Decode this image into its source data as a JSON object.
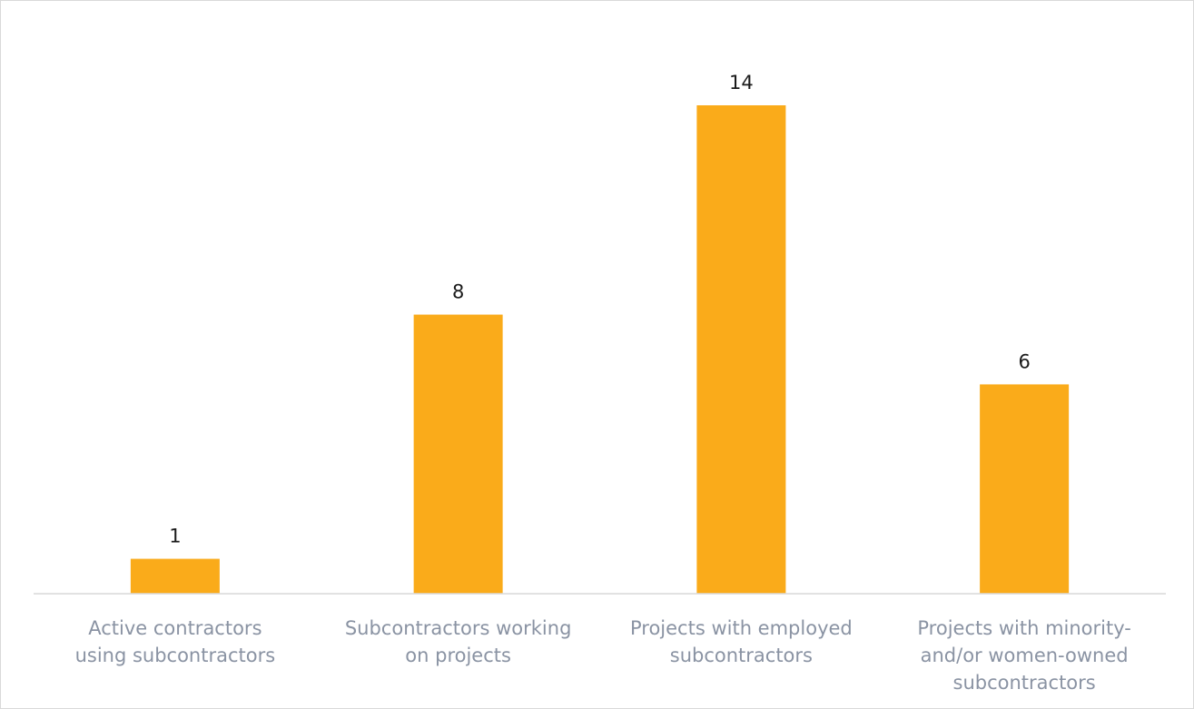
{
  "chart_data": {
    "type": "bar",
    "title": "",
    "xlabel": "",
    "ylabel": "",
    "categories": [
      [
        "Active contractors",
        "using subcontractors"
      ],
      [
        "Subcontractors working",
        "on projects"
      ],
      [
        "Projects with employed",
        "subcontractors"
      ],
      [
        "Projects with minority-",
        "and/or women-owned",
        "subcontractors"
      ]
    ],
    "values": [
      1,
      8,
      14,
      6
    ],
    "ylim": [
      0,
      16
    ],
    "grid": false,
    "legend": "none",
    "bar_color": "#faab1a",
    "axis_color": "#d9d9d9"
  }
}
